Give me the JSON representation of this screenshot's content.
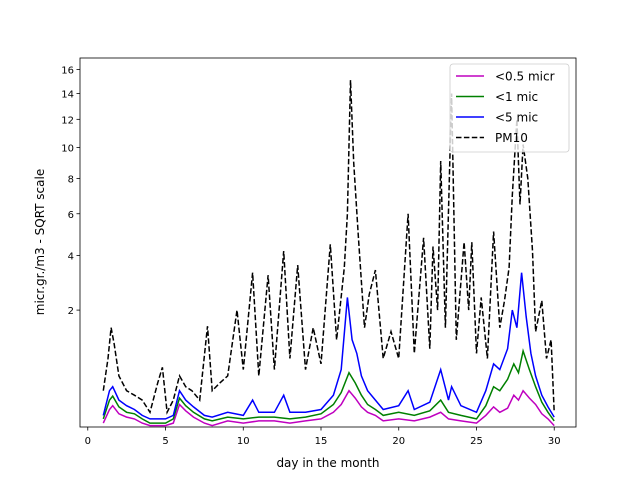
{
  "chart_data": {
    "type": "line",
    "title": "",
    "xlabel": "day in the month",
    "ylabel": "micr.gr./m3 - SQRT scale",
    "xlim": [
      -0.5,
      31.4
    ],
    "ylim": [
      0.025,
      17
    ],
    "yscale": "sqrt",
    "xticks": [
      0,
      5,
      10,
      15,
      20,
      25,
      30
    ],
    "yticks": [
      2,
      4,
      6,
      8,
      10,
      12,
      14,
      16
    ],
    "grid": false,
    "legend_position": "top-right",
    "series": [
      {
        "name": "<0.5 micr",
        "color": "#bf00bf",
        "style": "solid",
        "x": [
          1.0,
          1.4,
          1.6,
          2.0,
          2.5,
          3.0,
          3.5,
          4.0,
          5.0,
          5.5,
          5.9,
          6.3,
          6.8,
          7.5,
          8.0,
          9.0,
          10.0,
          11.0,
          12.0,
          13.0,
          14.0,
          15.0,
          15.8,
          16.3,
          16.8,
          17.2,
          17.6,
          18.0,
          18.5,
          19.0,
          20.0,
          21.0,
          22.0,
          22.7,
          23.2,
          24.0,
          25.0,
          25.6,
          26.1,
          26.5,
          27.0,
          27.4,
          27.7,
          28.0,
          28.4,
          28.8,
          29.2,
          29.6,
          30.0
        ],
        "y": [
          0.04,
          0.12,
          0.15,
          0.09,
          0.07,
          0.06,
          0.04,
          0.03,
          0.03,
          0.04,
          0.16,
          0.11,
          0.07,
          0.04,
          0.03,
          0.05,
          0.04,
          0.05,
          0.05,
          0.04,
          0.05,
          0.06,
          0.1,
          0.16,
          0.3,
          0.22,
          0.14,
          0.1,
          0.08,
          0.05,
          0.06,
          0.05,
          0.07,
          0.1,
          0.06,
          0.05,
          0.04,
          0.08,
          0.14,
          0.1,
          0.13,
          0.25,
          0.2,
          0.3,
          0.22,
          0.16,
          0.09,
          0.06,
          0.03
        ]
      },
      {
        "name": "<1 mic",
        "color": "#008000",
        "style": "solid",
        "x": [
          1.0,
          1.4,
          1.6,
          2.0,
          2.5,
          3.0,
          3.5,
          4.0,
          5.0,
          5.5,
          5.9,
          6.3,
          6.8,
          7.5,
          8.0,
          9.0,
          10.0,
          11.0,
          12.0,
          13.0,
          14.0,
          15.0,
          15.8,
          16.3,
          16.8,
          17.2,
          17.6,
          18.0,
          18.5,
          19.0,
          20.0,
          21.0,
          22.0,
          22.7,
          23.2,
          24.0,
          25.0,
          25.6,
          26.1,
          26.5,
          27.0,
          27.4,
          27.7,
          28.0,
          28.4,
          28.8,
          29.2,
          29.6,
          30.0
        ],
        "y": [
          0.06,
          0.2,
          0.24,
          0.14,
          0.1,
          0.09,
          0.06,
          0.04,
          0.04,
          0.06,
          0.22,
          0.15,
          0.1,
          0.06,
          0.05,
          0.07,
          0.06,
          0.07,
          0.07,
          0.06,
          0.07,
          0.09,
          0.16,
          0.28,
          0.55,
          0.4,
          0.25,
          0.16,
          0.12,
          0.08,
          0.1,
          0.08,
          0.11,
          0.2,
          0.1,
          0.08,
          0.06,
          0.15,
          0.35,
          0.3,
          0.45,
          0.7,
          0.55,
          0.95,
          0.6,
          0.35,
          0.18,
          0.1,
          0.05
        ]
      },
      {
        "name": "<5 mic",
        "color": "#0000ff",
        "style": "solid",
        "x": [
          1.0,
          1.4,
          1.6,
          2.0,
          2.5,
          3.0,
          3.5,
          4.0,
          5.0,
          5.5,
          5.9,
          6.3,
          6.8,
          7.5,
          8.0,
          9.0,
          10.0,
          10.6,
          11.0,
          12.0,
          12.6,
          13.0,
          14.0,
          15.0,
          15.8,
          16.3,
          16.7,
          17.0,
          17.3,
          17.6,
          18.0,
          18.5,
          19.0,
          20.0,
          20.6,
          21.0,
          22.0,
          22.7,
          23.2,
          23.4,
          24.0,
          25.0,
          25.6,
          26.1,
          26.5,
          27.0,
          27.3,
          27.6,
          27.9,
          28.2,
          28.5,
          28.8,
          29.2,
          29.6,
          30.0
        ],
        "y": [
          0.08,
          0.3,
          0.35,
          0.2,
          0.15,
          0.12,
          0.08,
          0.06,
          0.06,
          0.08,
          0.3,
          0.2,
          0.14,
          0.08,
          0.07,
          0.1,
          0.08,
          0.2,
          0.1,
          0.1,
          0.25,
          0.1,
          0.1,
          0.12,
          0.25,
          0.6,
          2.4,
          1.2,
          0.9,
          0.5,
          0.3,
          0.2,
          0.12,
          0.15,
          0.3,
          0.12,
          0.18,
          0.6,
          0.2,
          0.35,
          0.15,
          0.1,
          0.3,
          0.7,
          0.6,
          1.0,
          2.0,
          1.5,
          3.3,
          1.8,
          0.9,
          0.5,
          0.25,
          0.14,
          0.07
        ]
      },
      {
        "name": "PM10",
        "color": "#000000",
        "style": "dashed",
        "x": [
          1.0,
          1.3,
          1.5,
          1.7,
          2.0,
          2.5,
          3.0,
          3.5,
          4.0,
          4.5,
          4.8,
          5.1,
          5.5,
          5.9,
          6.3,
          6.7,
          7.2,
          7.7,
          8.0,
          8.5,
          9.0,
          9.6,
          10.0,
          10.6,
          11.0,
          11.6,
          12.0,
          12.6,
          13.0,
          13.5,
          14.0,
          14.5,
          15.0,
          15.6,
          16.0,
          16.5,
          16.7,
          16.9,
          17.1,
          17.4,
          17.8,
          18.1,
          18.5,
          19.0,
          19.5,
          20.0,
          20.6,
          21.0,
          21.6,
          22.0,
          22.2,
          22.5,
          22.7,
          23.0,
          23.4,
          23.7,
          24.2,
          24.5,
          24.7,
          25.0,
          25.3,
          25.7,
          26.1,
          26.5,
          26.8,
          27.1,
          27.3,
          27.6,
          27.8,
          28.0,
          28.3,
          28.6,
          28.8,
          29.2,
          29.5,
          29.8,
          30.0
        ],
        "y": [
          0.3,
          0.8,
          1.5,
          1.1,
          0.5,
          0.3,
          0.25,
          0.2,
          0.1,
          0.4,
          0.64,
          0.1,
          0.2,
          0.5,
          0.35,
          0.3,
          0.2,
          1.54,
          0.3,
          0.4,
          0.5,
          2.0,
          0.6,
          3.3,
          0.5,
          3.2,
          0.6,
          4.2,
          0.8,
          3.6,
          0.6,
          1.5,
          0.7,
          4.5,
          1.2,
          3.5,
          6.0,
          15.1,
          9.0,
          4.9,
          1.5,
          2.5,
          3.4,
          0.8,
          1.4,
          0.8,
          6.0,
          0.9,
          4.8,
          1.0,
          4.4,
          2.0,
          9.1,
          1.5,
          14.0,
          1.2,
          4.6,
          2.0,
          4.6,
          0.9,
          2.4,
          0.8,
          5.1,
          1.5,
          2.3,
          3.5,
          7.0,
          12.0,
          6.5,
          10.2,
          8.0,
          4.2,
          1.4,
          2.3,
          0.8,
          1.2,
          0.1
        ]
      }
    ]
  }
}
